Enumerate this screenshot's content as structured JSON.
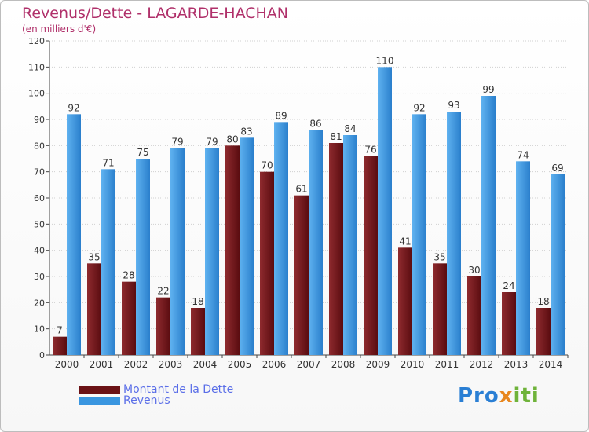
{
  "header": {
    "title": "Revenus/Dette - LAGARDE-HACHAN",
    "subtitle": "(en milliers d'€)"
  },
  "colors": {
    "debt": "#7a1e22",
    "revenue": "#3a96e0",
    "title": "#b0306a",
    "grid": "#d0d0d0"
  },
  "legend": {
    "items": [
      {
        "label": "Montant de la Dette",
        "color": "#6b1216"
      },
      {
        "label": "Revenus",
        "color": "#3a96e0"
      }
    ]
  },
  "logo": {
    "part1": "Pro",
    "part2": "x",
    "part3": "iti"
  },
  "chart_data": {
    "type": "bar",
    "title": "Revenus/Dette - LAGARDE-HACHAN",
    "subtitle": "(en milliers d'€)",
    "xlabel": "",
    "ylabel": "",
    "ylim": [
      0,
      120
    ],
    "yticks": [
      0,
      10,
      20,
      30,
      40,
      50,
      60,
      70,
      80,
      90,
      100,
      110,
      120
    ],
    "grid": true,
    "legend_position": "bottom-left",
    "categories": [
      "2000",
      "2001",
      "2002",
      "2003",
      "2004",
      "2005",
      "2006",
      "2007",
      "2008",
      "2009",
      "2010",
      "2011",
      "2012",
      "2013",
      "2014"
    ],
    "series": [
      {
        "name": "Montant de la Dette",
        "values": [
          7,
          35,
          28,
          22,
          18,
          80,
          70,
          61,
          81,
          76,
          41,
          35,
          30,
          24,
          18
        ]
      },
      {
        "name": "Revenus",
        "values": [
          92,
          71,
          75,
          79,
          79,
          83,
          89,
          86,
          84,
          110,
          92,
          93,
          99,
          74,
          69
        ]
      }
    ]
  }
}
